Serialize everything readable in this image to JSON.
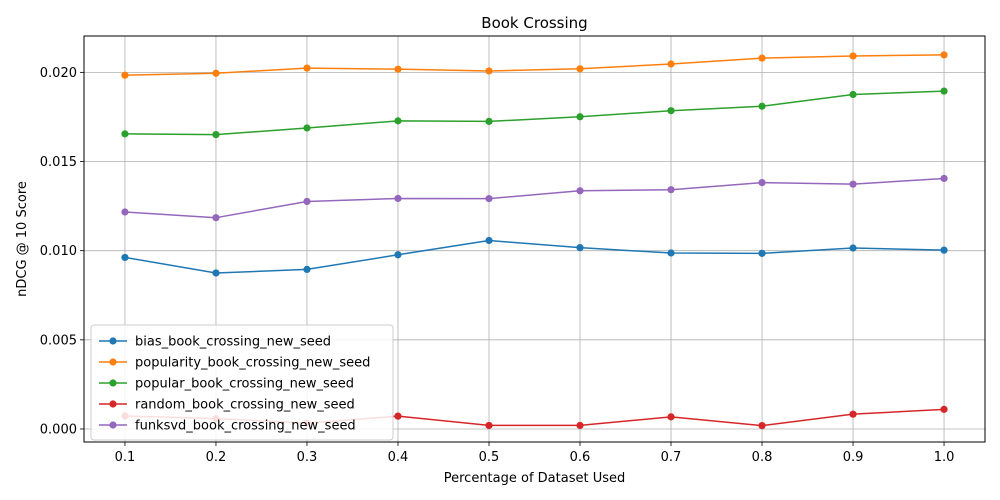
{
  "chart_data": {
    "type": "line",
    "title": "Book Crossing",
    "xlabel": "Percentage of Dataset Used",
    "ylabel": "nDCG @ 10 Score",
    "x": [
      0.1,
      0.2,
      0.3,
      0.4,
      0.5,
      0.6,
      0.7,
      0.8,
      0.9,
      1.0
    ],
    "x_tick_labels": [
      "0.1",
      "0.2",
      "0.3",
      "0.4",
      "0.5",
      "0.6",
      "0.7",
      "0.8",
      "0.9",
      "1.0"
    ],
    "y_ticks": [
      0.0,
      0.005,
      0.01,
      0.015,
      0.02
    ],
    "y_tick_labels": [
      "0.000",
      "0.005",
      "0.010",
      "0.015",
      "0.020"
    ],
    "xlim": [
      0.055,
      1.045
    ],
    "ylim": [
      -0.00073,
      0.02204
    ],
    "grid": true,
    "legend_position": "lower-left",
    "series": [
      {
        "name": "bias_book_crossing_new_seed",
        "color": "#1f77b4",
        "values": [
          0.00962,
          0.00875,
          0.00895,
          0.00977,
          0.01057,
          0.01017,
          0.00987,
          0.00985,
          0.01015,
          0.01003
        ]
      },
      {
        "name": "popularity_book_crossing_new_seed",
        "color": "#ff7f0e",
        "values": [
          0.01984,
          0.01995,
          0.02024,
          0.02018,
          0.02008,
          0.0202,
          0.02047,
          0.0208,
          0.02092,
          0.02098
        ]
      },
      {
        "name": "popular_book_crossing_new_seed",
        "color": "#2ca02c",
        "values": [
          0.01655,
          0.01651,
          0.01688,
          0.01728,
          0.01725,
          0.01751,
          0.01785,
          0.0181,
          0.01876,
          0.01895
        ]
      },
      {
        "name": "random_book_crossing_new_seed",
        "color": "#d62728",
        "values": [
          0.00073,
          0.00058,
          0.00033,
          0.00072,
          0.0002,
          0.0002,
          0.00068,
          0.00019,
          0.00083,
          0.0011
        ]
      },
      {
        "name": "funksvd_book_crossing_new_seed",
        "color": "#9467bd",
        "values": [
          0.01217,
          0.01185,
          0.01276,
          0.01293,
          0.01292,
          0.01336,
          0.01342,
          0.01382,
          0.01373,
          0.01405
        ]
      }
    ]
  }
}
